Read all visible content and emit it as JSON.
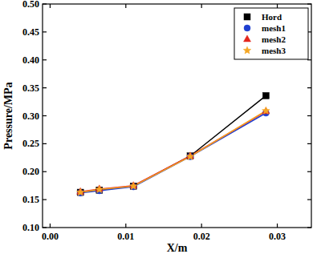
{
  "chart_data": {
    "type": "line",
    "x_label": "X/m",
    "y_label": "Pressure/MPa",
    "xlim": [
      -0.001,
      0.0345
    ],
    "ylim": [
      0.1,
      0.5
    ],
    "xticks": [
      {
        "value": 0,
        "label": "0.00"
      },
      0.01,
      0.02,
      0.03
    ],
    "yticks": [
      {
        "value": 0.1,
        "label": "0.10"
      },
      0.15,
      {
        "value": 0.2,
        "label": "0.20"
      },
      0.25,
      {
        "value": 0.3,
        "label": "0.30"
      },
      0.35,
      {
        "value": 0.4,
        "label": "0.40"
      },
      0.45,
      {
        "value": 0.5,
        "label": "0.50"
      }
    ],
    "legend": "top-right",
    "grid": false,
    "x": [
      0.004,
      0.0065,
      0.011,
      0.0185,
      0.0285
    ],
    "series": [
      {
        "name": "Hord",
        "color": "#000000",
        "marker": "square",
        "line_style": "solid",
        "values": [
          0.163,
          0.167,
          0.174,
          0.228,
          0.336
        ]
      },
      {
        "name": "mesh1",
        "color": "#1f3fd0",
        "marker": "circle",
        "line_style": "solid",
        "values": [
          0.162,
          0.166,
          0.173,
          0.227,
          0.305
        ]
      },
      {
        "name": "mesh2",
        "color": "#e3261c",
        "marker": "triangle",
        "line_style": "solid",
        "values": [
          0.164,
          0.169,
          0.175,
          0.228,
          0.308
        ]
      },
      {
        "name": "mesh3",
        "color": "#f5a623",
        "marker": "star",
        "line_style": "solid",
        "values": [
          0.163,
          0.168,
          0.174,
          0.227,
          0.309
        ]
      }
    ]
  }
}
